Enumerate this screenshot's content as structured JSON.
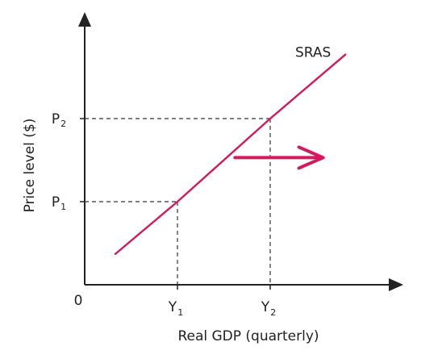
{
  "chart_data": {
    "type": "line",
    "xlabel": "Real GDP (quarterly)",
    "ylabel": "Price level ($)",
    "origin_label": "0",
    "x_ticks": [
      {
        "main": "Y",
        "sub": "1",
        "x": 1
      },
      {
        "main": "Y",
        "sub": "2",
        "x": 2
      }
    ],
    "y_ticks": [
      {
        "main": "P",
        "sub": "1",
        "y": 1
      },
      {
        "main": "P",
        "sub": "2",
        "y": 2
      }
    ],
    "xlim": [
      0,
      3.3
    ],
    "ylim": [
      0,
      3.05
    ],
    "series": [
      {
        "name": "SRAS",
        "color": "#d6185f",
        "points": [
          [
            0.33,
            0.37
          ],
          [
            1,
            1
          ],
          [
            2,
            2
          ],
          [
            2.81,
            2.77
          ]
        ]
      }
    ],
    "reference_points": [
      [
        1,
        1
      ],
      [
        2,
        2
      ]
    ],
    "annotation": {
      "type": "arrow",
      "direction": "right",
      "color": "#d6185f",
      "from": [
        1.62,
        1.53
      ],
      "to": [
        2.57,
        1.53
      ]
    },
    "axis_color": "#222222",
    "grid": false
  }
}
